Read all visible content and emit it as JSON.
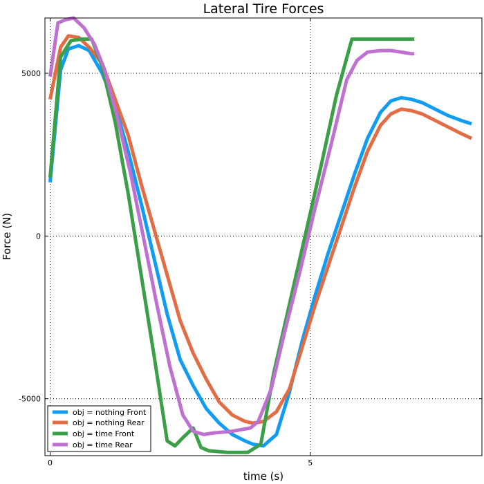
{
  "chart_data": {
    "type": "line",
    "title": "Lateral Tire Forces",
    "xlabel": "time (s)",
    "ylabel": "Force (N)",
    "xlim": [
      -0.1,
      8.3
    ],
    "ylim": [
      -6750,
      6700
    ],
    "xticks": [
      0,
      5
    ],
    "xtick_labels": [
      "0",
      "5"
    ],
    "yticks": [
      -5000,
      0,
      5000
    ],
    "ytick_labels": [
      "-5000",
      "0",
      "5000"
    ],
    "grid": true,
    "grid_style": "dotted",
    "legend_position": "bottom-left",
    "series": [
      {
        "name": "obj = nothing Front",
        "color": "#0f9cf2",
        "x": [
          0,
          0.2,
          0.35,
          0.55,
          0.75,
          1.0,
          1.25,
          1.5,
          1.75,
          2.0,
          2.25,
          2.5,
          2.75,
          3.0,
          3.25,
          3.5,
          3.75,
          3.9,
          4.1,
          4.35,
          4.6,
          4.85,
          5.1,
          5.35,
          5.6,
          5.85,
          6.1,
          6.35,
          6.55,
          6.75,
          6.95,
          7.15,
          7.4,
          7.65,
          7.9,
          8.1
        ],
        "y": [
          1650,
          5100,
          5750,
          5850,
          5700,
          5000,
          4000,
          2600,
          1000,
          -700,
          -2400,
          -3800,
          -4600,
          -5300,
          -5750,
          -6100,
          -6300,
          -6400,
          -6450,
          -6100,
          -4800,
          -3200,
          -1800,
          -500,
          700,
          1900,
          3000,
          3800,
          4150,
          4250,
          4200,
          4100,
          3900,
          3700,
          3550,
          3450
        ]
      },
      {
        "name": "obj = nothing Rear",
        "color": "#e26d44",
        "x": [
          0,
          0.2,
          0.35,
          0.55,
          0.75,
          1.0,
          1.25,
          1.5,
          1.75,
          2.0,
          2.25,
          2.5,
          2.75,
          3.0,
          3.25,
          3.5,
          3.75,
          3.9,
          4.1,
          4.35,
          4.6,
          4.85,
          5.1,
          5.35,
          5.6,
          5.85,
          6.1,
          6.35,
          6.55,
          6.75,
          6.95,
          7.15,
          7.4,
          7.65,
          7.9,
          8.1
        ],
        "y": [
          4200,
          5800,
          6150,
          6100,
          5800,
          5300,
          4200,
          3100,
          1600,
          200,
          -1200,
          -2600,
          -3600,
          -4400,
          -5100,
          -5500,
          -5700,
          -5750,
          -5700,
          -5400,
          -4700,
          -3400,
          -2100,
          -900,
          300,
          1500,
          2600,
          3400,
          3750,
          3900,
          3850,
          3750,
          3550,
          3350,
          3150,
          3000
        ]
      },
      {
        "name": "obj = time Front",
        "color": "#3a9f46",
        "x": [
          0,
          0.2,
          0.4,
          0.6,
          0.8,
          1.0,
          1.25,
          1.5,
          1.75,
          2.0,
          2.25,
          2.4,
          2.55,
          2.75,
          2.9,
          3.05,
          3.4,
          3.8,
          4.05,
          4.3,
          4.6,
          4.9,
          5.2,
          5.5,
          5.8,
          6.1,
          6.4,
          6.7,
          6.95,
          7.0
        ],
        "y": [
          1800,
          5500,
          6000,
          6050,
          6050,
          5200,
          3500,
          1300,
          -1200,
          -3700,
          -6300,
          -6450,
          -6200,
          -5900,
          -6500,
          -6600,
          -6650,
          -6650,
          -6400,
          -4200,
          -2100,
          0,
          2100,
          4300,
          6050,
          6050,
          6050,
          6050,
          6050,
          6050
        ]
      },
      {
        "name": "obj = time Rear",
        "color": "#bf71d1",
        "x": [
          0,
          0.15,
          0.3,
          0.45,
          0.65,
          0.85,
          1.05,
          1.3,
          1.55,
          1.8,
          2.05,
          2.3,
          2.55,
          2.75,
          2.95,
          3.15,
          3.5,
          3.85,
          4.0,
          4.25,
          4.5,
          4.8,
          5.1,
          5.4,
          5.7,
          5.9,
          6.1,
          6.35,
          6.55,
          6.75,
          6.95,
          7.0
        ],
        "y": [
          4900,
          6550,
          6650,
          6700,
          6400,
          5900,
          5100,
          3600,
          1900,
          -100,
          -2100,
          -4000,
          -5500,
          -6000,
          -6100,
          -6050,
          -6000,
          -5900,
          -5700,
          -4700,
          -3000,
          -1100,
          900,
          2800,
          4800,
          5400,
          5650,
          5700,
          5700,
          5650,
          5600,
          5600
        ]
      }
    ]
  }
}
